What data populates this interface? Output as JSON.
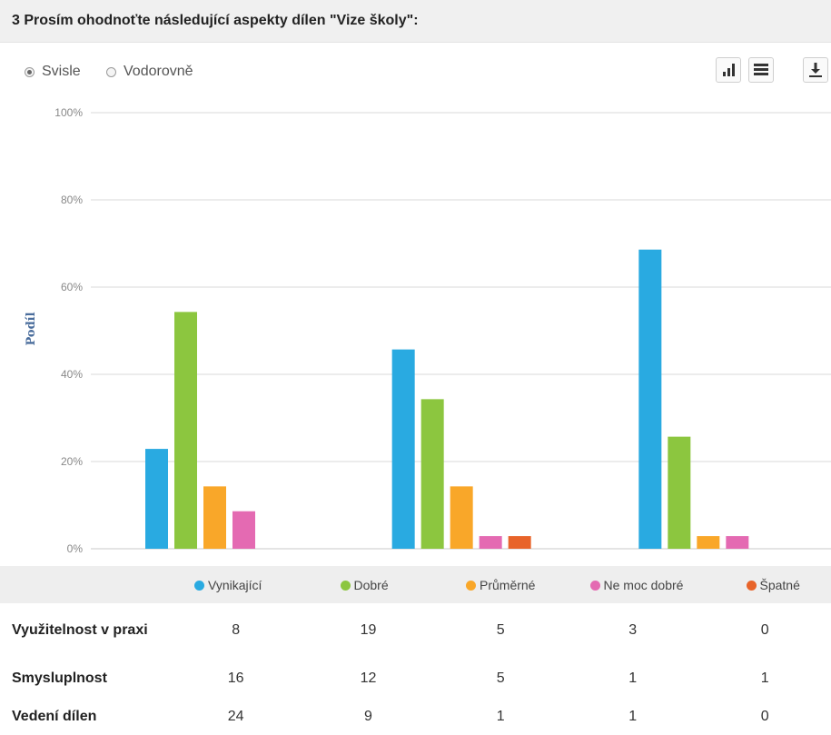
{
  "header": {
    "title": "3 Prosím ohodnoťte následující aspekty dílen \"Vize školy\":"
  },
  "toolbar": {
    "orientation_options": [
      {
        "label": "Svisle",
        "selected": true
      },
      {
        "label": "Vodorovně",
        "selected": false
      }
    ],
    "buttons": [
      {
        "name": "bar-chart-view-button",
        "icon": "bar-chart-icon"
      },
      {
        "name": "table-view-button",
        "icon": "table-icon"
      },
      {
        "name": "download-button",
        "icon": "download-icon"
      }
    ]
  },
  "chart_data": {
    "type": "bar",
    "ylabel": "Podíl",
    "ylim": [
      0,
      100
    ],
    "y_ticks": [
      "0%",
      "20%",
      "40%",
      "60%",
      "80%",
      "100%"
    ],
    "grid": true,
    "legend_position": "bottom",
    "categories": [
      "Využitelnost v praxi",
      "Smysluplnost",
      "Vedení dílen"
    ],
    "series": [
      {
        "name": "Vynikající",
        "color": "#29aae1",
        "values": [
          22.9,
          45.7,
          68.6
        ]
      },
      {
        "name": "Dobré",
        "color": "#8cc63f",
        "values": [
          54.3,
          34.3,
          25.7
        ]
      },
      {
        "name": "Průměrné",
        "color": "#f9a729",
        "values": [
          14.3,
          14.3,
          2.9
        ]
      },
      {
        "name": "Ne moc dobré",
        "color": "#e46ab2",
        "values": [
          8.6,
          2.9,
          2.9
        ]
      },
      {
        "name": "Špatné",
        "color": "#e8642a",
        "values": [
          0,
          2.9,
          0
        ]
      }
    ]
  },
  "table": {
    "rows": [
      {
        "label": "Využitelnost v praxi",
        "values": [
          "8",
          "19",
          "5",
          "3",
          "0"
        ]
      },
      {
        "label": "Smysluplnost",
        "values": [
          "16",
          "12",
          "5",
          "1",
          "1"
        ]
      },
      {
        "label": "Vedení dílen",
        "values": [
          "24",
          "9",
          "1",
          "1",
          "0"
        ]
      }
    ]
  }
}
